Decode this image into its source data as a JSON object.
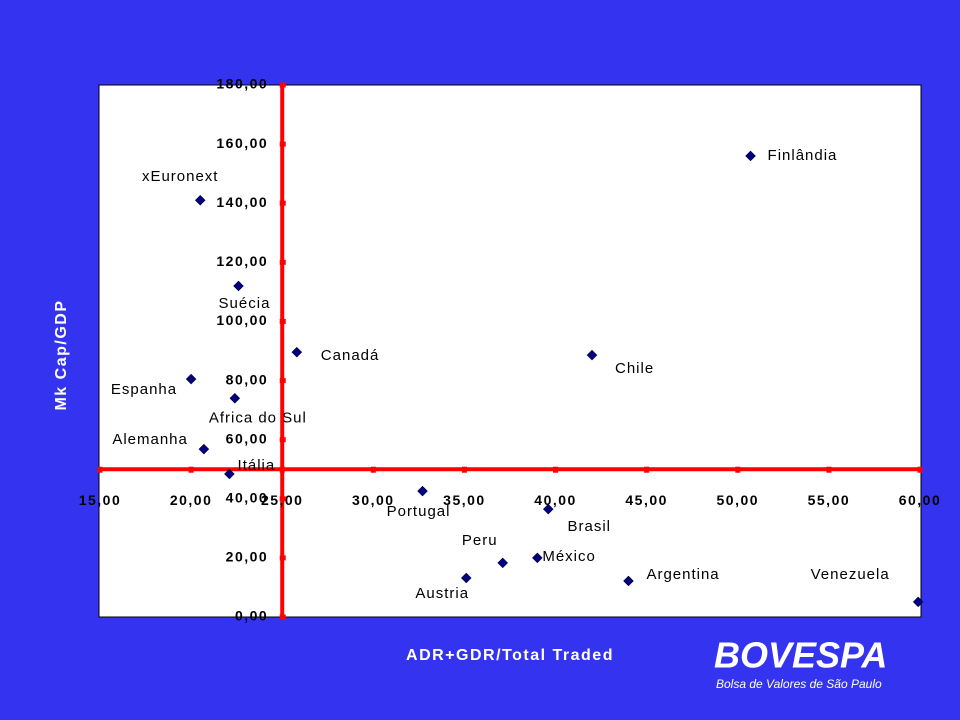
{
  "chart_data": {
    "type": "scatter",
    "xlabel": "ADR+GDR/Total Traded",
    "ylabel": "Mk Cap/GDP",
    "labels": [
      "Finlândia",
      "xEuronext",
      "Suécia",
      "Canadá",
      "Chile",
      "Espanha",
      "Africa do Sul",
      "Alemanha",
      "Itália",
      "Portugal",
      "Brasil",
      "México",
      "Peru",
      "Austria",
      "Argentina",
      "Venezuela"
    ],
    "x": [
      50.7,
      20.5,
      22.6,
      25.8,
      42.0,
      20.0,
      22.4,
      20.7,
      22.1,
      32.7,
      39.6,
      39.0,
      37.1,
      35.1,
      44.0,
      59.9
    ],
    "values": [
      156,
      141,
      112,
      89.6,
      88.6,
      80.5,
      74,
      56.8,
      48.4,
      42.6,
      36.5,
      20,
      18.3,
      13.2,
      12.2,
      5.1
    ],
    "color": "#000080",
    "axis_color": "#ff0000",
    "xlim": [
      15,
      60
    ],
    "ylim": [
      0,
      180
    ],
    "xticks": [
      {
        "value": 15,
        "label": "15,00"
      },
      {
        "value": 20,
        "label": "20,00"
      },
      {
        "value": 25,
        "label": "25,00"
      },
      {
        "value": 30,
        "label": "30,00"
      },
      {
        "value": 35,
        "label": "35,00"
      },
      {
        "value": 40,
        "label": "40,00"
      },
      {
        "value": 45,
        "label": "45,00"
      },
      {
        "value": 50,
        "label": "50,00"
      },
      {
        "value": 55,
        "label": "55,00"
      },
      {
        "value": 60,
        "label": "60,00"
      }
    ],
    "yticks": [
      {
        "value": 0,
        "label": "0,00"
      },
      {
        "value": 20,
        "label": "20,00"
      },
      {
        "value": 40,
        "label": "40,00"
      },
      {
        "value": 60,
        "label": "60,00"
      },
      {
        "value": 80,
        "label": "80,00"
      },
      {
        "value": 100,
        "label": "100,00"
      },
      {
        "value": 120,
        "label": "120,00"
      },
      {
        "value": 140,
        "label": "140,00"
      },
      {
        "value": 160,
        "label": "160,00"
      },
      {
        "value": 180,
        "label": "180,00"
      }
    ],
    "x_axis_at": 50,
    "y_axis_at": 25,
    "grid": false
  },
  "logo": {
    "name": "BOVESPA",
    "tagline": "Bolsa de Valores de São Paulo"
  }
}
